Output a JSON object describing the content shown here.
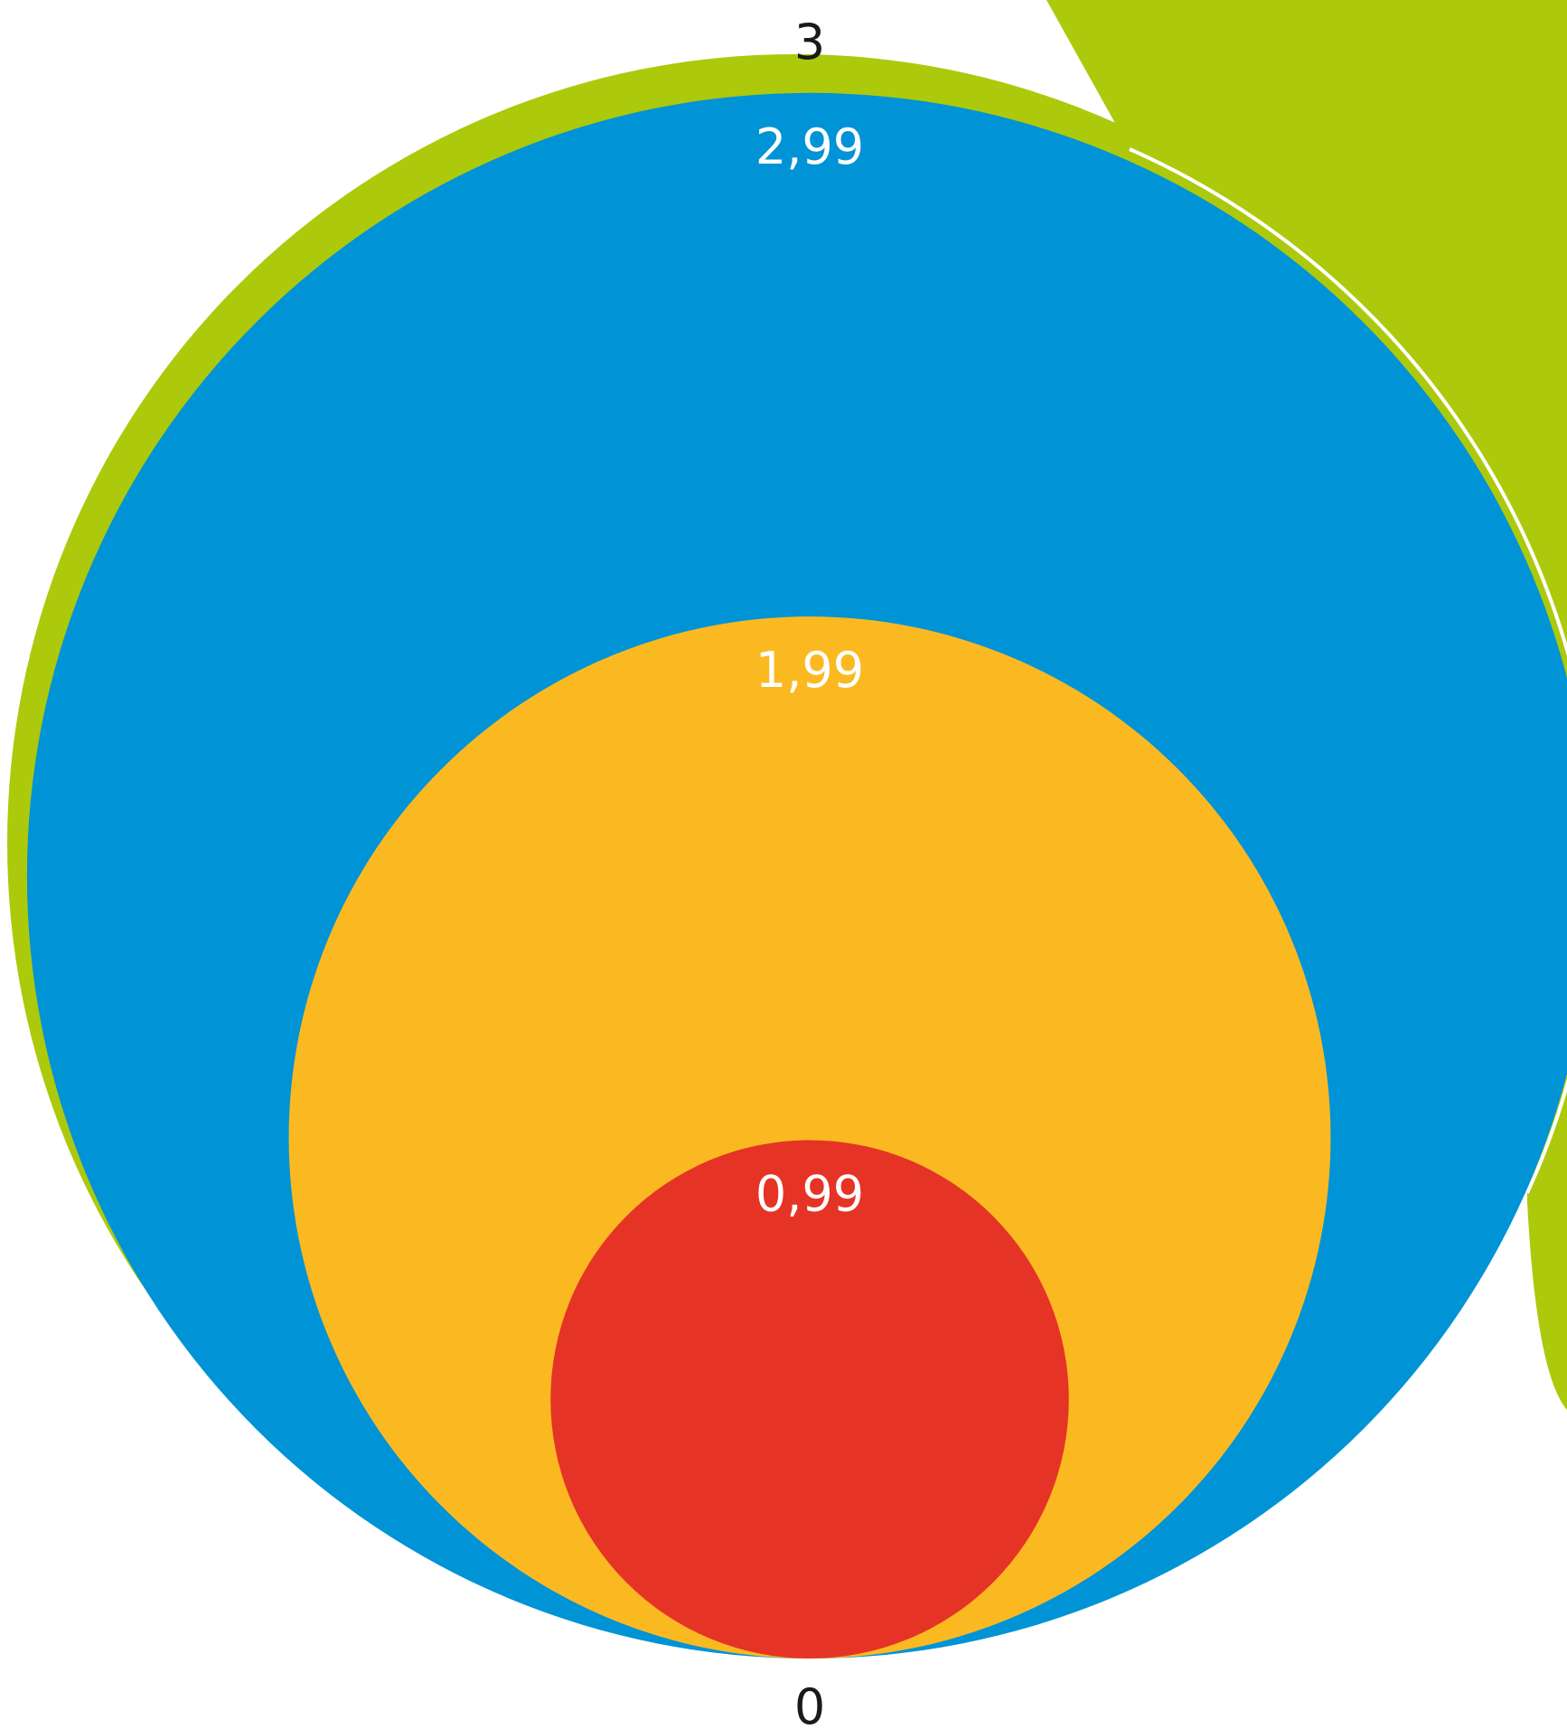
{
  "chart_data": {
    "type": "nested-circles",
    "title": "",
    "scale": {
      "min": 0,
      "max": 3,
      "min_label": "0",
      "max_label": "3"
    },
    "values": [
      {
        "value": 3,
        "color": "#adc90b",
        "callout": true
      },
      {
        "value": 2.99,
        "label": "2,99",
        "color": "#0093d6"
      },
      {
        "value": 1.99,
        "label": "1,99",
        "color": "#fbb921"
      },
      {
        "value": 0.99,
        "label": "0,99",
        "color": "#e53426"
      }
    ]
  }
}
